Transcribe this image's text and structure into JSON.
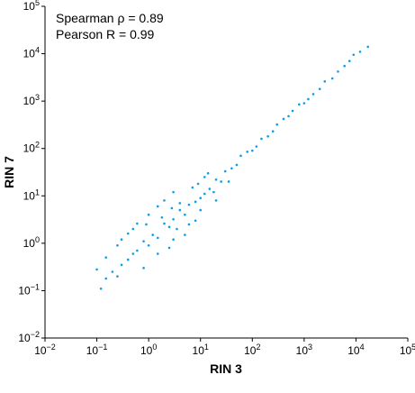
{
  "chart_data": {
    "type": "scatter",
    "xscale": "log",
    "yscale": "log",
    "xlabel": "RIN 3",
    "ylabel": "RIN 7",
    "xlim": [
      0.01,
      100000
    ],
    "ylim": [
      0.01,
      100000
    ],
    "grid": false,
    "legend": "none",
    "point_color": "#0a9ee8",
    "x_ticks": [
      {
        "base": "10",
        "exp": "−2",
        "value": 0.01
      },
      {
        "base": "10",
        "exp": "−1",
        "value": 0.1
      },
      {
        "base": "10",
        "exp": "0",
        "value": 1
      },
      {
        "base": "10",
        "exp": "1",
        "value": 10
      },
      {
        "base": "10",
        "exp": "2",
        "value": 100
      },
      {
        "base": "10",
        "exp": "3",
        "value": 1000
      },
      {
        "base": "10",
        "exp": "4",
        "value": 10000
      },
      {
        "base": "10",
        "exp": "5",
        "value": 100000
      }
    ],
    "y_ticks": [
      {
        "base": "10",
        "exp": "−2",
        "value": 0.01
      },
      {
        "base": "10",
        "exp": "−1",
        "value": 0.1
      },
      {
        "base": "10",
        "exp": "0",
        "value": 1
      },
      {
        "base": "10",
        "exp": "1",
        "value": 10
      },
      {
        "base": "10",
        "exp": "2",
        "value": 100
      },
      {
        "base": "10",
        "exp": "3",
        "value": 1000
      },
      {
        "base": "10",
        "exp": "4",
        "value": 10000
      },
      {
        "base": "10",
        "exp": "5",
        "value": 100000
      }
    ],
    "annotations": [
      "Spearman ρ = 0.89",
      "Pearson R = 0.99"
    ],
    "points": [
      [
        17000,
        14000
      ],
      [
        12000,
        11000
      ],
      [
        9000,
        9500
      ],
      [
        7500,
        7000
      ],
      [
        6000,
        5500
      ],
      [
        4500,
        4200
      ],
      [
        3500,
        3000
      ],
      [
        2500,
        2600
      ],
      [
        2000,
        1800
      ],
      [
        1500,
        1400
      ],
      [
        1200,
        1100
      ],
      [
        1000,
        900
      ],
      [
        800,
        850
      ],
      [
        600,
        620
      ],
      [
        500,
        480
      ],
      [
        400,
        420
      ],
      [
        300,
        320
      ],
      [
        250,
        230
      ],
      [
        200,
        180
      ],
      [
        150,
        160
      ],
      [
        120,
        110
      ],
      [
        100,
        90
      ],
      [
        80,
        85
      ],
      [
        60,
        70
      ],
      [
        50,
        45
      ],
      [
        40,
        38
      ],
      [
        30,
        33
      ],
      [
        25,
        20
      ],
      [
        20,
        22
      ],
      [
        15,
        14
      ],
      [
        12,
        11
      ],
      [
        10,
        9
      ],
      [
        8,
        7.5
      ],
      [
        6,
        6.5
      ],
      [
        5,
        4
      ],
      [
        4,
        5
      ],
      [
        3,
        3.2
      ],
      [
        2.5,
        2.2
      ],
      [
        2,
        2.6
      ],
      [
        1.5,
        1.3
      ],
      [
        1.2,
        1.5
      ],
      [
        1,
        0.9
      ],
      [
        0.8,
        1.1
      ],
      [
        0.6,
        0.7
      ],
      [
        0.5,
        0.6
      ],
      [
        0.4,
        0.45
      ],
      [
        0.3,
        0.35
      ],
      [
        0.25,
        0.2
      ],
      [
        0.2,
        0.25
      ],
      [
        0.15,
        0.18
      ],
      [
        0.12,
        0.11
      ],
      [
        0.1,
        0.28
      ],
      [
        0.15,
        0.5
      ],
      [
        0.3,
        1.2
      ],
      [
        0.5,
        2
      ],
      [
        1,
        4
      ],
      [
        1.5,
        6
      ],
      [
        2,
        8
      ],
      [
        3,
        12
      ],
      [
        0.8,
        0.3
      ],
      [
        1.5,
        0.6
      ],
      [
        3,
        1.2
      ],
      [
        6,
        2.5
      ],
      [
        10,
        5
      ],
      [
        20,
        8
      ],
      [
        0.25,
        0.9
      ],
      [
        0.4,
        1.6
      ],
      [
        0.6,
        2.6
      ],
      [
        2.5,
        0.8
      ],
      [
        5,
        1.5
      ],
      [
        8,
        3
      ],
      [
        4,
        7
      ],
      [
        7,
        15
      ],
      [
        12,
        25
      ],
      [
        18,
        12
      ],
      [
        35,
        20
      ],
      [
        0.9,
        2.5
      ],
      [
        1.8,
        3.5
      ],
      [
        2.8,
        5.5
      ],
      [
        3.5,
        2
      ],
      [
        9,
        18
      ],
      [
        14,
        30
      ]
    ]
  }
}
